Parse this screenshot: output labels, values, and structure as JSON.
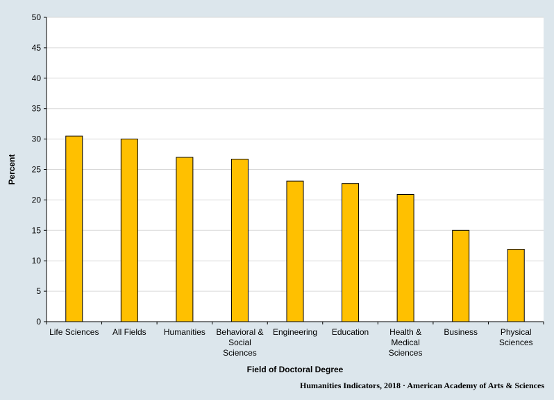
{
  "chart_data": {
    "type": "bar",
    "categories": [
      [
        "Life Sciences"
      ],
      [
        "All Fields"
      ],
      [
        "Humanities"
      ],
      [
        "Behavioral &",
        "Social",
        "Sciences"
      ],
      [
        "Engineering"
      ],
      [
        "Education"
      ],
      [
        "Health &",
        "Medical",
        "Sciences"
      ],
      [
        "Business"
      ],
      [
        "Physical",
        "Sciences"
      ]
    ],
    "values": [
      30.5,
      30.0,
      27.0,
      26.7,
      23.1,
      22.7,
      20.9,
      15.0,
      11.9
    ],
    "xlabel": "Field of Doctoral Degree",
    "ylabel": "Percent",
    "ylim": [
      0,
      50
    ],
    "yticks": [
      "0",
      "5",
      "10",
      "15",
      "20",
      "25",
      "30",
      "35",
      "40",
      "45",
      "50"
    ],
    "grid": true,
    "bar_color": "#ffc000",
    "bar_edge_color": "#000000",
    "credit": "Humanities Indicators, 2018 · American Academy of Arts & Sciences"
  }
}
